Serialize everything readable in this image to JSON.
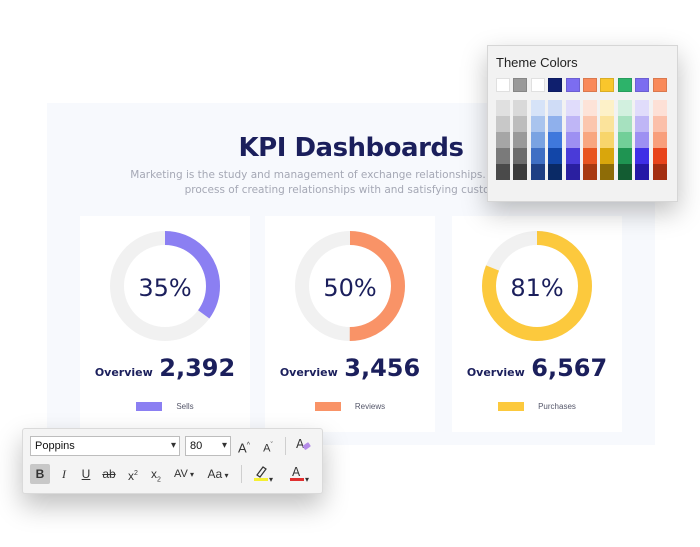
{
  "slide": {
    "title": "KPI Dashboards",
    "subtitle_line1": "Marketing is the study and management of exchange relationships. Marketing is the",
    "subtitle_line2": "process of creating relationships with and satisfying customers."
  },
  "cards": [
    {
      "percent_label": "35%",
      "percent": 35,
      "overview_label": "Overview",
      "value": "2,392",
      "legend": "Sells",
      "color": "#8b7ff2"
    },
    {
      "percent_label": "50%",
      "percent": 50,
      "overview_label": "Overview",
      "value": "3,456",
      "legend": "Reviews",
      "color": "#f99367"
    },
    {
      "percent_label": "81%",
      "percent": 81,
      "overview_label": "Overview",
      "value": "6,567",
      "legend": "Purchases",
      "color": "#fcc93d"
    }
  ],
  "ring_track_color": "#f1f1f1",
  "theme_colors": {
    "title": "Theme Colors",
    "top_row": [
      "#ffffff",
      "#999999",
      "#ffffff",
      "#0f1f6e",
      "#7c6df0",
      "#f98a5a",
      "#f9c62c",
      "#2db36a",
      "#7c6df0",
      "#f98a5a"
    ],
    "shade_columns": [
      [
        "#e0e0e0",
        "#c8c8c8",
        "#a6a6a6",
        "#7a7a7a",
        "#4a4a4a"
      ],
      [
        "#d9d9d9",
        "#bdbdbd",
        "#9a9a9a",
        "#6c6c6c",
        "#3c3c3c"
      ],
      [
        "#d6e3f8",
        "#a9c4ee",
        "#7aa3e2",
        "#3f6fc4",
        "#1e3f84"
      ],
      [
        "#cfdcf6",
        "#8fb0ec",
        "#3f78dc",
        "#1246a8",
        "#0a2a66"
      ],
      [
        "#e0dcfb",
        "#bfb6f6",
        "#9d90f2",
        "#4a3bd8",
        "#2a1fa0"
      ],
      [
        "#fde3d8",
        "#fbc6ae",
        "#f8a67f",
        "#e8551f",
        "#a83a10"
      ],
      [
        "#fdf1c8",
        "#fbe39b",
        "#f8d56b",
        "#d9a60c",
        "#8e6c07"
      ],
      [
        "#d2f0df",
        "#a6e1bf",
        "#72cf98",
        "#1f9452",
        "#135c32"
      ],
      [
        "#e0dcfb",
        "#bfb6f6",
        "#9d90f2",
        "#3f2fe6",
        "#2518a6"
      ],
      [
        "#fde0d6",
        "#fbc0aa",
        "#f89f7c",
        "#e8431a",
        "#a32e10"
      ]
    ]
  },
  "toolbar": {
    "font": "Poppins",
    "size": "80",
    "grow_font": "A",
    "shrink_font": "A",
    "bold": "B",
    "italic": "I",
    "underline": "U",
    "strikethrough": "ab",
    "superscript": "x",
    "subscript": "x",
    "spacing": "AV",
    "change_case": "Aa",
    "font_color": "A",
    "highlight_color": "#f5f032",
    "font_color_value": "#e03030"
  }
}
